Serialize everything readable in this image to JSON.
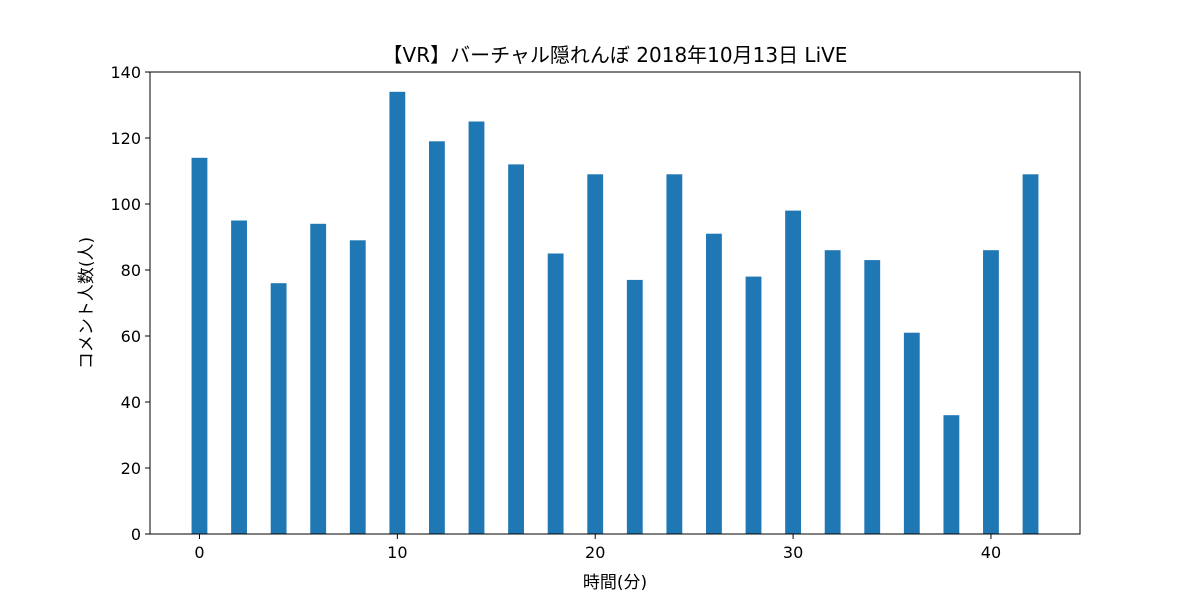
{
  "chart_data": {
    "type": "bar",
    "title": "【VR】バーチャル隠れんぼ 2018年10月13日 LiVE",
    "xlabel": "時間(分)",
    "ylabel": "コメント人数(人)",
    "x": [
      0,
      2,
      4,
      6,
      8,
      10,
      12,
      14,
      16,
      18,
      20,
      22,
      24,
      26,
      28,
      30,
      32,
      34,
      36,
      38,
      40,
      42
    ],
    "values": [
      114,
      95,
      76,
      94,
      89,
      134,
      119,
      125,
      112,
      85,
      109,
      77,
      109,
      91,
      78,
      98,
      86,
      83,
      61,
      36,
      86,
      109
    ],
    "xlim": [
      -2.5,
      44.5
    ],
    "ylim": [
      0,
      140
    ],
    "bar_width": 0.8,
    "xticks": [
      0,
      10,
      20,
      30,
      40
    ],
    "yticks": [
      0,
      20,
      40,
      60,
      80,
      100,
      120,
      140
    ],
    "grid": false,
    "bar_color": "#1f77b4"
  }
}
